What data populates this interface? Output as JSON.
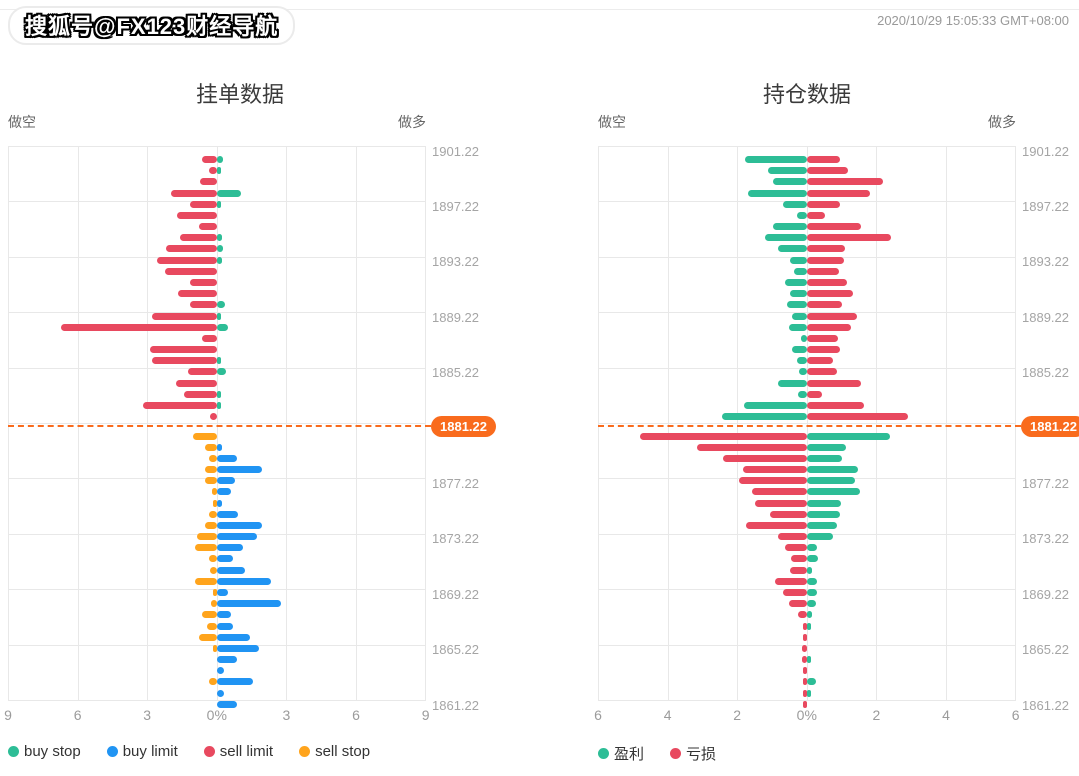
{
  "page": {
    "watermark": "搜狐号@FX123财经导航",
    "timestamp": "2020/10/29 15:05:33 GMT+08:00"
  },
  "colors": {
    "buy_stop_green": "#2dbd96",
    "buy_limit_blue": "#2094f3",
    "sell_limit_red": "#e8495f",
    "sell_stop_orange": "#ffa41c",
    "profit_green": "#2dbd96",
    "loss_red": "#e8495f",
    "current_price_orange": "#f96b1d",
    "grid": "#e8e8e8",
    "axis_text": "#9b9b9b"
  },
  "chart_data": [
    {
      "type": "bar",
      "title": "挂单数据",
      "left_header": "做空",
      "right_header": "做多",
      "x_ticks": [
        "9",
        "6",
        "3",
        "0%",
        "3",
        "6",
        "9"
      ],
      "x_max": 9,
      "y_tick_labels": [
        "1901.22",
        "1897.22",
        "1893.22",
        "1889.22",
        "1885.22",
        "1881.22",
        "1877.22",
        "1873.22",
        "1869.22",
        "1865.22",
        "1861.22"
      ],
      "current_price_label": "1881.22",
      "legend": [
        {
          "label": "buy stop",
          "slug": "buy-stop",
          "color": "#2dbd96"
        },
        {
          "label": "buy limit",
          "slug": "buy-limit",
          "color": "#2094f3"
        },
        {
          "label": "sell limit",
          "slug": "sell-limit",
          "color": "#e8495f"
        },
        {
          "label": "sell stop",
          "slug": "sell-stop",
          "color": "#ffa41c"
        }
      ],
      "upper": {
        "left_series": "sell limit",
        "left_slug": "sell-limit",
        "left_color": "#e8495f",
        "right_series": "buy stop",
        "right_slug": "buy-stop",
        "right_color": "#2dbd96",
        "rows": [
          [
            0.65,
            0.26
          ],
          [
            0.35,
            0.13
          ],
          [
            0.74,
            0
          ],
          [
            2.0,
            1.04
          ],
          [
            1.17,
            0.09
          ],
          [
            1.74,
            0
          ],
          [
            0.78,
            0
          ],
          [
            1.6,
            0.2
          ],
          [
            2.2,
            0.26
          ],
          [
            2.6,
            0.2
          ],
          [
            2.26,
            0
          ],
          [
            1.17,
            0
          ],
          [
            1.7,
            0
          ],
          [
            1.17,
            0.35
          ],
          [
            2.78,
            0.09
          ],
          [
            6.7,
            0.48
          ],
          [
            0.65,
            0
          ],
          [
            2.9,
            0
          ],
          [
            2.78,
            0.09
          ],
          [
            1.26,
            0.39
          ],
          [
            1.78,
            0
          ],
          [
            1.43,
            0.09
          ],
          [
            3.17,
            0.06
          ],
          [
            0.3,
            0
          ]
        ]
      },
      "lower": {
        "left_series": "sell stop",
        "left_slug": "sell-stop",
        "left_color": "#ffa41c",
        "right_series": "buy limit",
        "right_slug": "buy-limit",
        "right_color": "#2094f3",
        "rows": [
          [
            1.05,
            0
          ],
          [
            0.5,
            0.2
          ],
          [
            0.35,
            0.87
          ],
          [
            0.5,
            1.94
          ],
          [
            0.5,
            0.78
          ],
          [
            0.2,
            0.6
          ],
          [
            0.1,
            0.2
          ],
          [
            0.35,
            0.9
          ],
          [
            0.5,
            1.94
          ],
          [
            0.88,
            1.73
          ],
          [
            0.93,
            1.13
          ],
          [
            0.35,
            0.7
          ],
          [
            0.3,
            1.2
          ],
          [
            0.93,
            2.33
          ],
          [
            0.1,
            0.48
          ],
          [
            0.26,
            2.74
          ],
          [
            0.65,
            0.6
          ],
          [
            0.43,
            0.7
          ],
          [
            0.78,
            1.4
          ],
          [
            0.1,
            1.8
          ],
          [
            0,
            0.86
          ],
          [
            0,
            0.3
          ],
          [
            0.36,
            1.57
          ],
          [
            0,
            0.3
          ],
          [
            0,
            0.86
          ]
        ]
      }
    },
    {
      "type": "bar",
      "title": "持仓数据",
      "left_header": "做空",
      "right_header": "做多",
      "x_ticks": [
        "6",
        "4",
        "2",
        "0%",
        "2",
        "4",
        "6"
      ],
      "x_max": 6,
      "y_tick_labels": [
        "1901.22",
        "1897.22",
        "1893.22",
        "1889.22",
        "1885.22",
        "1881.22",
        "1877.22",
        "1873.22",
        "1869.22",
        "1865.22",
        "1861.22"
      ],
      "current_price_label": "1881.22",
      "legend": [
        {
          "label": "盈利",
          "slug": "profit",
          "color": "#2dbd96"
        },
        {
          "label": "亏损",
          "slug": "loss",
          "color": "#e8495f"
        }
      ],
      "upper": {
        "left_series": "盈利",
        "left_slug": "profit",
        "left_color": "#2dbd96",
        "right_series": "亏损",
        "right_slug": "loss",
        "right_color": "#e8495f",
        "rows": [
          [
            1.77,
            0.96
          ],
          [
            1.12,
            1.17
          ],
          [
            0.98,
            2.17
          ],
          [
            1.68,
            1.8
          ],
          [
            0.7,
            0.94
          ],
          [
            0.28,
            0.51
          ],
          [
            0.97,
            1.56
          ],
          [
            1.22,
            2.4
          ],
          [
            0.83,
            1.08
          ],
          [
            0.5,
            1.06
          ],
          [
            0.36,
            0.92
          ],
          [
            0.62,
            1.14
          ],
          [
            0.49,
            1.31
          ],
          [
            0.58,
            1.0
          ],
          [
            0.44,
            1.43
          ],
          [
            0.51,
            1.26
          ],
          [
            0.16,
            0.9
          ],
          [
            0.44,
            0.94
          ],
          [
            0.3,
            0.75
          ],
          [
            0.23,
            0.86
          ],
          [
            0.82,
            1.54
          ],
          [
            0.27,
            0.42
          ],
          [
            1.8,
            1.63
          ],
          [
            2.44,
            2.89
          ]
        ]
      },
      "lower": {
        "left_series": "亏损",
        "left_slug": "loss",
        "left_color": "#e8495f",
        "right_series": "盈利",
        "right_slug": "profit",
        "right_color": "#2dbd96",
        "rows": [
          [
            4.8,
            2.37
          ],
          [
            3.17,
            1.13
          ],
          [
            2.4,
            1.0
          ],
          [
            1.84,
            1.46
          ],
          [
            1.94,
            1.37
          ],
          [
            1.58,
            1.51
          ],
          [
            1.49,
            0.99
          ],
          [
            1.06,
            0.96
          ],
          [
            1.74,
            0.85
          ],
          [
            0.83,
            0.75
          ],
          [
            0.63,
            0.28
          ],
          [
            0.46,
            0.32
          ],
          [
            0.49,
            0.14
          ],
          [
            0.91,
            0.3
          ],
          [
            0.68,
            0.28
          ],
          [
            0.51,
            0.26
          ],
          [
            0.25,
            0.14
          ],
          [
            0.1,
            0.1
          ],
          [
            0.05,
            0
          ],
          [
            0.15,
            0
          ],
          [
            0.15,
            0.08
          ],
          [
            0.06,
            0
          ],
          [
            0.08,
            0.26
          ],
          [
            0.05,
            0.1
          ],
          [
            0.05,
            0
          ]
        ]
      }
    }
  ]
}
